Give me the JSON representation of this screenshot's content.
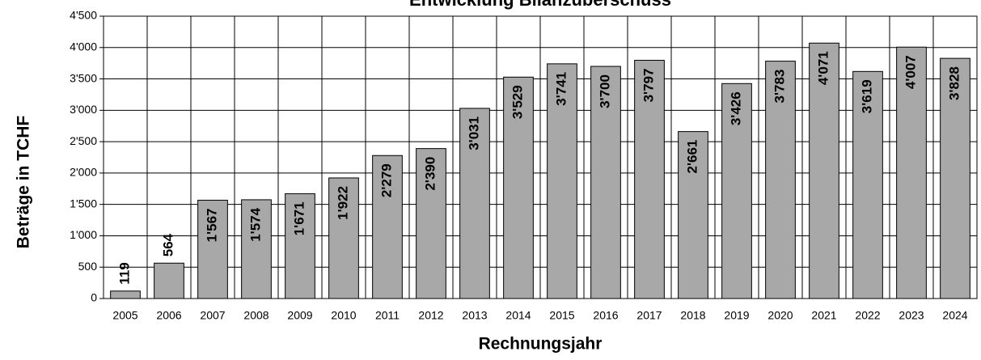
{
  "chart_data": {
    "type": "bar",
    "title": "Entwicklung Bilanzüberschuss",
    "x_label": "Rechnungsjahr",
    "y_label": "Beträge in TCHF",
    "categories": [
      "2005",
      "2006",
      "2007",
      "2008",
      "2009",
      "2010",
      "2011",
      "2012",
      "2013",
      "2014",
      "2015",
      "2016",
      "2017",
      "2018",
      "2019",
      "2020",
      "2021",
      "2022",
      "2023",
      "2024"
    ],
    "values": [
      119,
      564,
      1567,
      1574,
      1671,
      1922,
      2279,
      2390,
      3031,
      3529,
      3741,
      3700,
      3797,
      2661,
      3426,
      3783,
      4071,
      3619,
      4007,
      3828
    ],
    "value_labels": [
      "119",
      "564",
      "1'567",
      "1'574",
      "1'671",
      "1'922",
      "2'279",
      "2'390",
      "3'031",
      "3'529",
      "3'741",
      "3'700",
      "3'797",
      "2'661",
      "3'426",
      "3'783",
      "4'071",
      "3'619",
      "4'007",
      "3'828"
    ],
    "color": "#a8a8a8",
    "ylim": [
      0,
      4500
    ],
    "yticks": [
      0,
      500,
      {
        "value": 1000,
        "label": "1'000"
      },
      {
        "value": 1500,
        "label": "1'500"
      },
      {
        "value": 2000,
        "label": "2'000"
      },
      {
        "value": 2500,
        "label": "2'500"
      },
      {
        "value": 3000,
        "label": "3'000"
      },
      {
        "value": 3500,
        "label": "3'500"
      },
      {
        "value": 4000,
        "label": "4'000"
      },
      {
        "value": 4500,
        "label": "4'500"
      }
    ],
    "grid": true
  }
}
